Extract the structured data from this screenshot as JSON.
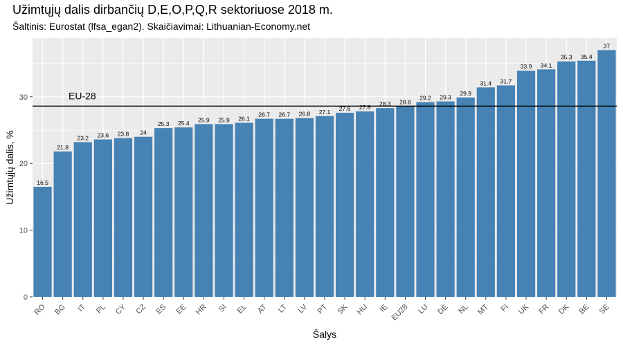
{
  "chart_data": {
    "type": "bar",
    "title": "Užimtųjų dalis dirbančių D,E,O,P,Q,R sektoriuose 2018 m.",
    "subtitle": "Šaltinis: Eurostat (lfsa_egan2). Skaičiavimai: Lithuanian-Economy.net",
    "xlabel": "Šalys",
    "ylabel": "Užimtųjų dalis, %",
    "categories": [
      "RO",
      "BG",
      "IT",
      "PL",
      "CY",
      "CZ",
      "ES",
      "EE",
      "HR",
      "SI",
      "EL",
      "AT",
      "LT",
      "LV",
      "PT",
      "SK",
      "HU",
      "IE",
      "EU28",
      "LU",
      "DE",
      "NL",
      "MT",
      "FI",
      "UK",
      "FR",
      "DK",
      "BE",
      "SE"
    ],
    "values": [
      16.5,
      21.8,
      23.2,
      23.6,
      23.8,
      24,
      25.3,
      25.4,
      25.9,
      25.9,
      26.1,
      26.7,
      26.7,
      26.8,
      27.1,
      27.6,
      27.8,
      28.3,
      28.6,
      29.2,
      29.3,
      29.9,
      31.4,
      31.7,
      33.9,
      34.1,
      35.3,
      35.4,
      37
    ],
    "value_labels": [
      "16.5",
      "21.8",
      "23.2",
      "23.6",
      "23.8",
      "24",
      "25.3",
      "25.4",
      "25.9",
      "25.9",
      "26.1",
      "26.7",
      "26.7",
      "26.8",
      "27.1",
      "27.6",
      "27.8",
      "28.3",
      "28.6",
      "29.2",
      "29.3",
      "29.9",
      "31.4",
      "31.7",
      "33.9",
      "34.1",
      "35.3",
      "35.4",
      "37"
    ],
    "ylim": [
      0,
      38.8
    ],
    "yticks": [
      0,
      10,
      20,
      30
    ],
    "grid": true,
    "bar_color": "#4682B4",
    "panel_color": "#EBEBEB",
    "reference_line": {
      "label": "EU-28",
      "value": 28.6,
      "color": "#000000"
    }
  }
}
